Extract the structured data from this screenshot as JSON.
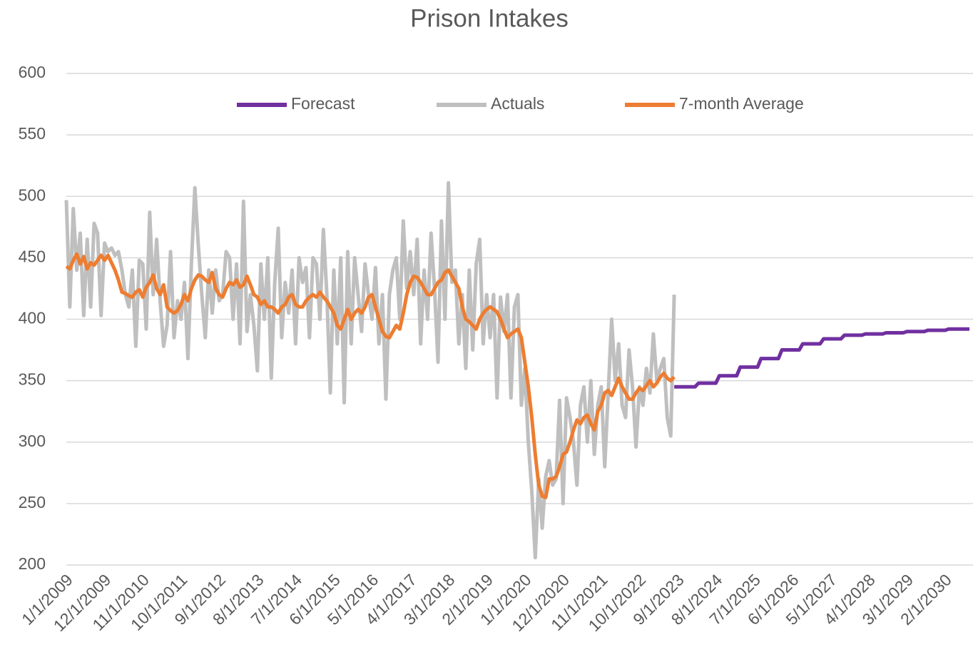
{
  "chart_data": {
    "type": "line",
    "title": "Prison Intakes",
    "categories": [
      "1/1/2009",
      null,
      null,
      null,
      null,
      null,
      null,
      null,
      null,
      null,
      null,
      "12/1/2009",
      null,
      null,
      null,
      null,
      null,
      null,
      null,
      null,
      null,
      null,
      "11/1/2010",
      null,
      null,
      null,
      null,
      null,
      null,
      null,
      null,
      null,
      null,
      "10/1/2011",
      null,
      null,
      null,
      null,
      null,
      null,
      null,
      null,
      null,
      null,
      "9/1/2012",
      null,
      null,
      null,
      null,
      null,
      null,
      null,
      null,
      null,
      null,
      "8/1/2013",
      null,
      null,
      null,
      null,
      null,
      null,
      null,
      null,
      null,
      null,
      "7/1/2014",
      null,
      null,
      null,
      null,
      null,
      null,
      null,
      null,
      null,
      null,
      "6/1/2015",
      null,
      null,
      null,
      null,
      null,
      null,
      null,
      null,
      null,
      null,
      "5/1/2016",
      null,
      null,
      null,
      null,
      null,
      null,
      null,
      null,
      null,
      null,
      "4/1/2017",
      null,
      null,
      null,
      null,
      null,
      null,
      null,
      null,
      null,
      null,
      "3/1/2018",
      null,
      null,
      null,
      null,
      null,
      null,
      null,
      null,
      null,
      null,
      "2/1/2019",
      null,
      null,
      null,
      null,
      null,
      null,
      null,
      null,
      null,
      null,
      "1/1/2020",
      null,
      null,
      null,
      null,
      null,
      null,
      null,
      null,
      null,
      null,
      "12/1/2020",
      null,
      null,
      null,
      null,
      null,
      null,
      null,
      null,
      null,
      null,
      "11/1/2021",
      null,
      null,
      null,
      null,
      null,
      null,
      null,
      null,
      null,
      null,
      "10/1/2022",
      null,
      null,
      null,
      null,
      null,
      null,
      null,
      null,
      null,
      null,
      "9/1/2023",
      null,
      null,
      null,
      null,
      null,
      null,
      null,
      null,
      null,
      null,
      "8/1/2024",
      null,
      null,
      null,
      null,
      null,
      null,
      null,
      null,
      null,
      null,
      "7/1/2025",
      null,
      null,
      null,
      null,
      null,
      null,
      null,
      null,
      null,
      null,
      "6/1/2026",
      null,
      null,
      null,
      null,
      null,
      null,
      null,
      null,
      null,
      null,
      "5/1/2027",
      null,
      null,
      null,
      null,
      null,
      null,
      null,
      null,
      null,
      null,
      "4/1/2028",
      null,
      null,
      null,
      null,
      null,
      null,
      null,
      null,
      null,
      null,
      "3/1/2029",
      null,
      null,
      null,
      null,
      null,
      null,
      null,
      null,
      null,
      null,
      "2/1/2030",
      null,
      null,
      null,
      null,
      null,
      null,
      null
    ],
    "series": [
      {
        "name": "Forecast",
        "color": "#7030a0",
        "values": [
          null,
          null,
          null,
          null,
          null,
          null,
          null,
          null,
          null,
          null,
          null,
          null,
          null,
          null,
          null,
          null,
          null,
          null,
          null,
          null,
          null,
          null,
          null,
          null,
          null,
          null,
          null,
          null,
          null,
          null,
          null,
          null,
          null,
          null,
          null,
          null,
          null,
          null,
          null,
          null,
          null,
          null,
          null,
          null,
          null,
          null,
          null,
          null,
          null,
          null,
          null,
          null,
          null,
          null,
          null,
          null,
          null,
          null,
          null,
          null,
          null,
          null,
          null,
          null,
          null,
          null,
          null,
          null,
          null,
          null,
          null,
          null,
          null,
          null,
          null,
          null,
          null,
          null,
          null,
          null,
          null,
          null,
          null,
          null,
          null,
          null,
          null,
          null,
          null,
          null,
          null,
          null,
          null,
          null,
          null,
          null,
          null,
          null,
          null,
          null,
          null,
          null,
          null,
          null,
          null,
          null,
          null,
          null,
          null,
          null,
          null,
          null,
          null,
          null,
          null,
          null,
          null,
          null,
          null,
          null,
          null,
          null,
          null,
          null,
          null,
          null,
          null,
          null,
          null,
          null,
          null,
          null,
          null,
          null,
          null,
          null,
          null,
          null,
          null,
          null,
          null,
          null,
          null,
          null,
          null,
          null,
          null,
          null,
          null,
          null,
          null,
          null,
          null,
          null,
          null,
          null,
          null,
          null,
          null,
          null,
          null,
          null,
          null,
          null,
          null,
          null,
          null,
          null,
          null,
          null,
          null,
          null,
          null,
          null,
          null,
          345,
          345,
          345,
          345,
          345,
          345,
          345,
          348,
          348,
          348,
          348,
          348,
          348,
          354,
          354,
          354,
          354,
          354,
          354,
          361,
          361,
          361,
          361,
          361,
          361,
          368,
          368,
          368,
          368,
          368,
          368,
          375,
          375,
          375,
          375,
          375,
          375,
          380,
          380,
          380,
          380,
          380,
          380,
          384,
          384,
          384,
          384,
          384,
          384,
          387,
          387,
          387,
          387,
          387,
          387,
          388,
          388,
          388,
          388,
          388,
          388,
          389,
          389,
          389,
          389,
          389,
          389,
          390,
          390,
          390,
          390,
          390,
          390,
          391,
          391,
          391,
          391,
          391,
          391,
          392,
          392,
          392,
          392,
          392,
          392,
          392
        ]
      },
      {
        "name": "Actuals",
        "color": "#bfbfbf",
        "values": [
          497,
          410,
          490,
          440,
          470,
          403,
          465,
          410,
          478,
          470,
          403,
          462,
          455,
          458,
          452,
          455,
          440,
          420,
          410,
          440,
          378,
          448,
          445,
          392,
          487,
          420,
          465,
          415,
          378,
          395,
          455,
          385,
          415,
          400,
          430,
          368,
          445,
          507,
          460,
          420,
          385,
          440,
          405,
          440,
          415,
          420,
          455,
          450,
          400,
          445,
          380,
          496,
          390,
          420,
          395,
          358,
          445,
          400,
          450,
          352,
          430,
          474,
          385,
          430,
          405,
          440,
          380,
          450,
          430,
          442,
          385,
          450,
          445,
          400,
          473,
          420,
          340,
          440,
          380,
          450,
          332,
          455,
          380,
          450,
          420,
          390,
          445,
          420,
          400,
          442,
          380,
          420,
          335,
          420,
          440,
          450,
          400,
          480,
          425,
          455,
          420,
          465,
          380,
          440,
          400,
          470,
          425,
          365,
          480,
          400,
          511,
          430,
          440,
          380,
          420,
          360,
          440,
          375,
          445,
          465,
          380,
          420,
          385,
          420,
          336,
          418,
          390,
          420,
          336,
          410,
          420,
          330,
          360,
          300,
          260,
          206,
          270,
          230,
          272,
          285,
          265,
          270,
          334,
          250,
          336,
          320,
          300,
          265,
          330,
          345,
          300,
          350,
          290,
          330,
          345,
          280,
          340,
          400,
          350,
          380,
          330,
          320,
          375,
          345,
          296,
          345,
          330,
          360,
          340,
          388,
          350,
          360,
          368,
          320,
          305,
          420,
          null,
          null,
          null,
          null,
          null,
          null,
          null,
          null,
          null,
          null,
          null,
          null,
          null,
          null,
          null,
          null,
          null,
          null,
          null,
          null,
          null,
          null,
          null,
          null,
          null,
          null,
          null,
          null,
          null,
          null,
          null,
          null,
          null,
          null,
          null,
          null,
          null,
          null,
          null,
          null,
          null,
          null,
          null,
          null,
          null,
          null,
          null,
          null,
          null,
          null,
          null,
          null,
          null,
          null,
          null,
          null,
          null,
          null,
          null,
          null,
          null,
          null,
          null,
          null,
          null,
          null,
          null,
          null,
          null,
          null,
          null,
          null,
          null,
          null,
          null,
          null,
          null,
          null,
          null,
          null,
          null,
          null,
          null,
          null,
          null
        ]
      },
      {
        "name": "7-month Average",
        "color": "#ed7d31",
        "values": [
          443,
          441,
          448,
          453,
          445,
          451,
          441,
          446,
          444,
          448,
          452,
          448,
          452,
          446,
          440,
          432,
          422,
          421,
          419,
          418,
          422,
          424,
          418,
          426,
          430,
          436,
          425,
          420,
          428,
          410,
          407,
          405,
          407,
          412,
          420,
          415,
          425,
          432,
          436,
          435,
          432,
          430,
          438,
          425,
          420,
          418,
          425,
          430,
          428,
          432,
          426,
          428,
          435,
          428,
          420,
          418,
          412,
          415,
          410,
          410,
          408,
          405,
          410,
          412,
          418,
          420,
          412,
          410,
          410,
          415,
          418,
          420,
          418,
          422,
          418,
          415,
          410,
          405,
          395,
          392,
          400,
          408,
          400,
          405,
          408,
          405,
          410,
          418,
          420,
          410,
          400,
          390,
          386,
          385,
          390,
          395,
          392,
          405,
          420,
          430,
          435,
          434,
          430,
          425,
          420,
          420,
          425,
          430,
          432,
          438,
          440,
          435,
          430,
          425,
          410,
          400,
          398,
          395,
          392,
          400,
          405,
          408,
          410,
          408,
          406,
          400,
          392,
          385,
          388,
          390,
          392,
          385,
          365,
          345,
          320,
          290,
          265,
          256,
          255,
          270,
          270,
          272,
          280,
          290,
          292,
          300,
          310,
          318,
          315,
          320,
          322,
          315,
          310,
          325,
          330,
          340,
          342,
          338,
          345,
          352,
          345,
          340,
          335,
          335,
          340,
          344,
          342,
          346,
          350,
          345,
          348,
          353,
          356,
          352,
          350,
          353,
          null,
          null,
          null,
          null,
          null,
          null,
          null,
          null,
          null,
          null,
          null,
          null,
          null,
          null,
          null,
          null,
          null,
          null,
          null,
          null,
          null,
          null,
          null,
          null,
          null,
          null,
          null,
          null,
          null,
          null,
          null,
          null,
          null,
          null,
          null,
          null,
          null,
          null,
          null,
          null,
          null,
          null,
          null,
          null,
          null,
          null,
          null,
          null,
          null,
          null,
          null,
          null,
          null,
          null,
          null,
          null,
          null,
          null,
          null,
          null,
          null,
          null,
          null,
          null,
          null,
          null,
          null,
          null,
          null,
          null,
          null,
          null,
          null,
          null,
          null,
          null,
          null,
          null,
          null,
          null,
          null,
          null,
          null,
          null,
          null
        ]
      }
    ],
    "ylim": [
      200,
      600
    ],
    "yticks": [
      200,
      250,
      300,
      350,
      400,
      450,
      500,
      550,
      600
    ],
    "grid": true,
    "legend": "top"
  }
}
